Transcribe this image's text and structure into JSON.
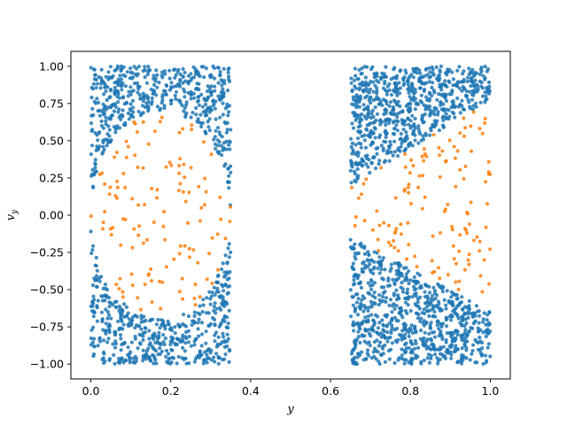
{
  "chart_data": {
    "type": "scatter",
    "title": "",
    "xlabel": "y",
    "ylabel": "v",
    "ylabel_subscript": "y",
    "xlim": [
      -0.05,
      1.05
    ],
    "ylim": [
      -1.1,
      1.1
    ],
    "x_ticks": [
      0.0,
      0.2,
      0.4,
      0.6,
      0.8,
      1.0
    ],
    "x_tick_labels": [
      "0.0",
      "0.2",
      "0.4",
      "0.6",
      "0.8",
      "1.0"
    ],
    "y_ticks": [
      1.0,
      0.75,
      0.5,
      0.25,
      0.0,
      -0.25,
      -0.5,
      -0.75,
      -1.0
    ],
    "y_tick_labels": [
      "1.00",
      "0.75",
      "0.50",
      "0.25",
      "0.00",
      "−0.25",
      "−0.50",
      "−0.75",
      "−1.00"
    ],
    "grid": false,
    "legend": "none",
    "series": [
      {
        "color": "#1f77b4",
        "point_count_approx": 4500,
        "regions": [
          {
            "x": [
              0.0,
              0.35
            ],
            "boundary_rule": "outside ellipse centred (0.175, 0.0) with half-widths (0.175, 0.70), top and bottom bands",
            "v_range": [
              -1.0,
              1.0
            ]
          },
          {
            "x": [
              0.65,
              1.0
            ],
            "boundary_rule": "bands bounded by lines from (0.65, 0.20) to (1.0, 0.78) above and from (0.65, -0.15) to (1.0, -0.65) below",
            "v_range": [
              -1.0,
              1.0
            ]
          }
        ]
      },
      {
        "color": "#ff7f0e",
        "point_count_approx": 520,
        "regions": [
          {
            "x": [
              0.0,
              0.35
            ],
            "boundary_rule": "inside ellipse centred (0.175, 0.0) with half-widths (0.175, 0.70)",
            "v_range": [
              -0.7,
              0.7
            ]
          },
          {
            "x": [
              0.65,
              1.0
            ],
            "boundary_rule": "between the two lines from (0.65, 0.20)-(1.0, 0.78) and (0.65, -0.15)-(1.0, -0.65)",
            "v_range": [
              -0.65,
              0.78
            ]
          }
        ]
      }
    ]
  }
}
